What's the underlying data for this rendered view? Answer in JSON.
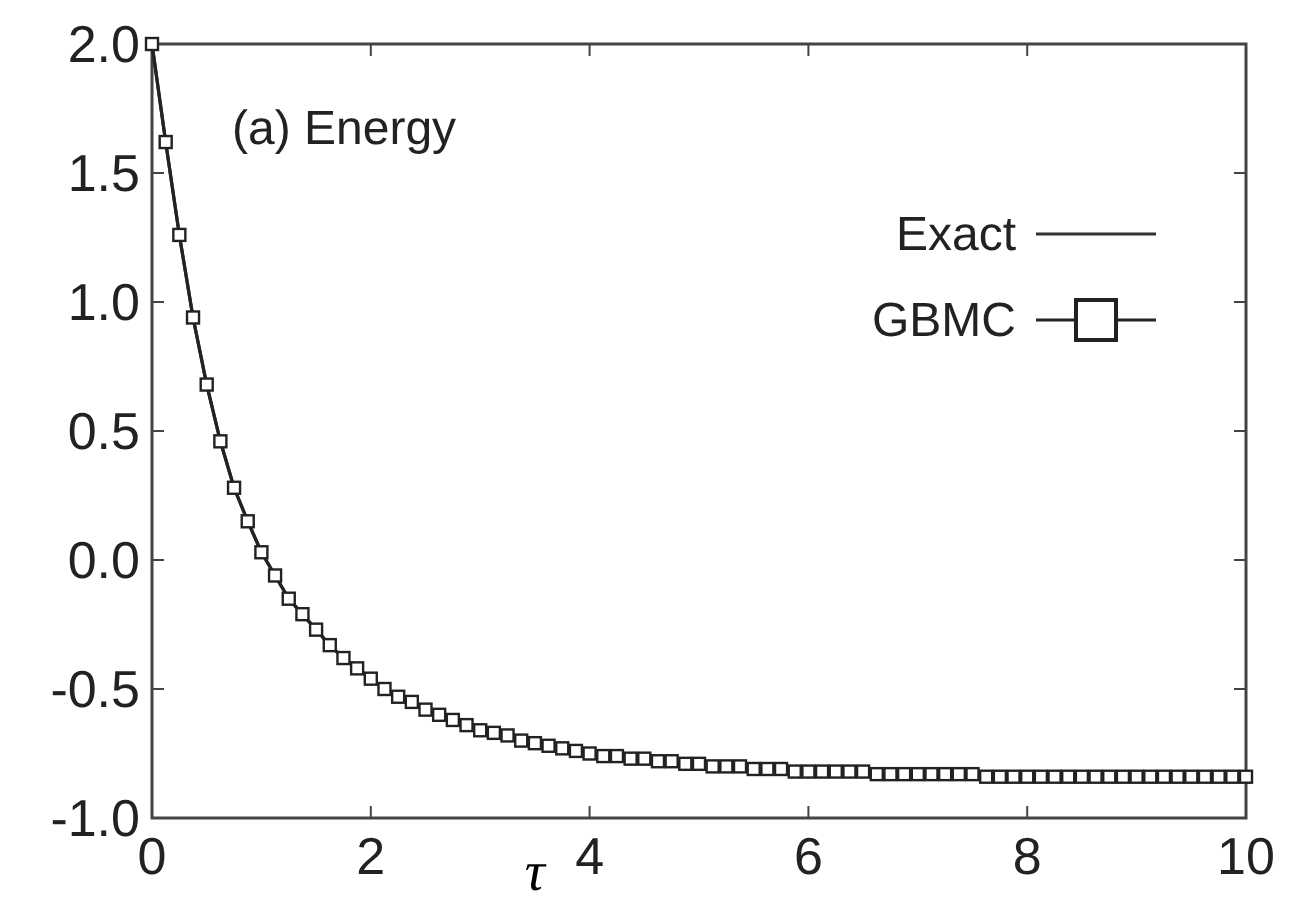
{
  "chart_data": {
    "type": "line",
    "xlabel": "τ",
    "annotations": [
      "(a) Energy"
    ],
    "xlim": [
      0,
      10
    ],
    "xticks": [
      0,
      2,
      4,
      6,
      8,
      10
    ],
    "ylim": [
      -1,
      2
    ],
    "yticks": [
      {
        "value": -1,
        "label": "-1.0"
      },
      {
        "value": -0.5,
        "label": "-0.5"
      },
      {
        "value": 0,
        "label": "0.0"
      },
      {
        "value": 0.5,
        "label": "0.5"
      },
      {
        "value": 1,
        "label": "1.0"
      },
      {
        "value": 1.5,
        "label": "1.5"
      },
      {
        "value": 2,
        "label": "2.0"
      }
    ],
    "grid": false,
    "legend": "top right",
    "x": [
      0,
      0.125,
      0.25,
      0.375,
      0.5,
      0.625,
      0.75,
      0.875,
      1,
      1.125,
      1.25,
      1.375,
      1.5,
      1.625,
      1.75,
      1.875,
      2,
      2.125,
      2.25,
      2.375,
      2.5,
      2.625,
      2.75,
      2.875,
      3,
      3.125,
      3.25,
      3.375,
      3.5,
      3.625,
      3.75,
      3.875,
      4,
      4.125,
      4.25,
      4.375,
      4.5,
      4.625,
      4.75,
      4.875,
      5,
      5.125,
      5.25,
      5.375,
      5.5,
      5.625,
      5.75,
      5.875,
      6,
      6.125,
      6.25,
      6.375,
      6.5,
      6.625,
      6.75,
      6.875,
      7,
      7.125,
      7.25,
      7.375,
      7.5,
      7.625,
      7.75,
      7.875,
      8,
      8.125,
      8.25,
      8.375,
      8.5,
      8.625,
      8.75,
      8.875,
      9,
      9.125,
      9.25,
      9.375,
      9.5,
      9.625,
      9.75,
      9.875,
      10
    ],
    "series": [
      {
        "name": "Exact",
        "color": "#333333",
        "marker": "none",
        "line_style": "solid",
        "values": [
          2.0,
          1.62,
          1.26,
          0.94,
          0.68,
          0.46,
          0.28,
          0.15,
          0.03,
          -0.06,
          -0.15,
          -0.21,
          -0.27,
          -0.33,
          -0.38,
          -0.42,
          -0.46,
          -0.5,
          -0.53,
          -0.55,
          -0.58,
          -0.6,
          -0.62,
          -0.64,
          -0.66,
          -0.67,
          -0.68,
          -0.7,
          -0.71,
          -0.72,
          -0.73,
          -0.74,
          -0.75,
          -0.76,
          -0.76,
          -0.77,
          -0.77,
          -0.78,
          -0.78,
          -0.79,
          -0.79,
          -0.8,
          -0.8,
          -0.8,
          -0.81,
          -0.81,
          -0.81,
          -0.82,
          -0.82,
          -0.82,
          -0.82,
          -0.82,
          -0.82,
          -0.83,
          -0.83,
          -0.83,
          -0.83,
          -0.83,
          -0.83,
          -0.83,
          -0.83,
          -0.84,
          -0.84,
          -0.84,
          -0.84,
          -0.84,
          -0.84,
          -0.84,
          -0.84,
          -0.84,
          -0.84,
          -0.84,
          -0.84,
          -0.84,
          -0.84,
          -0.84,
          -0.84,
          -0.84,
          -0.84,
          -0.84,
          -0.84
        ]
      },
      {
        "name": "GBMC",
        "color": "#222222",
        "marker": "square",
        "line_style": "solid",
        "values": [
          2.0,
          1.62,
          1.26,
          0.94,
          0.68,
          0.46,
          0.28,
          0.15,
          0.03,
          -0.06,
          -0.15,
          -0.21,
          -0.27,
          -0.33,
          -0.38,
          -0.42,
          -0.46,
          -0.5,
          -0.53,
          -0.55,
          -0.58,
          -0.6,
          -0.62,
          -0.64,
          -0.66,
          -0.67,
          -0.68,
          -0.7,
          -0.71,
          -0.72,
          -0.73,
          -0.74,
          -0.75,
          -0.76,
          -0.76,
          -0.77,
          -0.77,
          -0.78,
          -0.78,
          -0.79,
          -0.79,
          -0.8,
          -0.8,
          -0.8,
          -0.81,
          -0.81,
          -0.81,
          -0.82,
          -0.82,
          -0.82,
          -0.82,
          -0.82,
          -0.82,
          -0.83,
          -0.83,
          -0.83,
          -0.83,
          -0.83,
          -0.83,
          -0.83,
          -0.83,
          -0.84,
          -0.84,
          -0.84,
          -0.84,
          -0.84,
          -0.84,
          -0.84,
          -0.84,
          -0.84,
          -0.84,
          -0.84,
          -0.84,
          -0.84,
          -0.84,
          -0.84,
          -0.84,
          -0.84,
          -0.84,
          -0.84,
          -0.84
        ]
      }
    ]
  }
}
